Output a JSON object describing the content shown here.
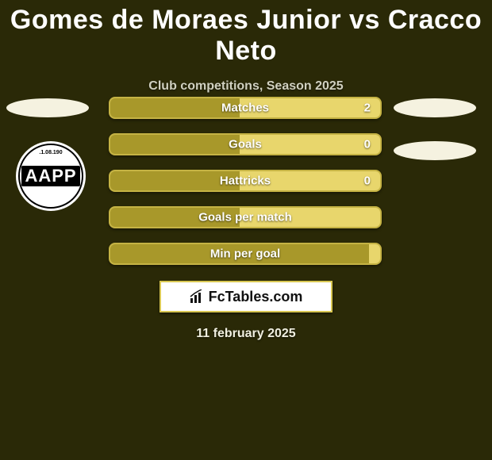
{
  "title": "Gomes de Moraes Junior vs Cracco Neto",
  "subtitle": "Club competitions, Season 2025",
  "club_badge": {
    "top_text": ".1.08.190",
    "letters": "AAPP"
  },
  "stats": [
    {
      "label": "Matches",
      "value": "2",
      "fill_pct": 48
    },
    {
      "label": "Goals",
      "value": "0",
      "fill_pct": 48
    },
    {
      "label": "Hattricks",
      "value": "0",
      "fill_pct": 48
    },
    {
      "label": "Goals per match",
      "value": "",
      "fill_pct": 48
    },
    {
      "label": "Min per goal",
      "value": "",
      "fill_pct": 96
    }
  ],
  "brand": "FcTables.com",
  "date": "11 february 2025",
  "colors": {
    "background": "#2a2907",
    "title": "#ffffff",
    "subtitle": "#d0d0c0",
    "bar_bg": "#e8d66c",
    "bar_border": "#c5b344",
    "bar_fill": "#a8982a",
    "ellipse": "#f5f2e0",
    "badge_bg": "#ffffff"
  }
}
